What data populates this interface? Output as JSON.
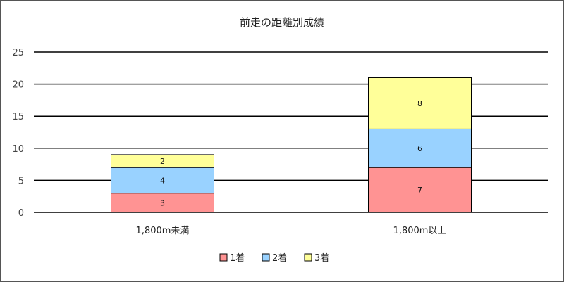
{
  "chart_data": {
    "type": "bar",
    "stacked": true,
    "title": "前走の距離別成績",
    "categories": [
      "1,800m未満",
      "1,800m以上"
    ],
    "series": [
      {
        "name": "1着",
        "values": [
          3,
          7
        ],
        "color": "#ff9393"
      },
      {
        "name": "2着",
        "values": [
          4,
          6
        ],
        "color": "#99d2ff"
      },
      {
        "name": "3着",
        "values": [
          2,
          8
        ],
        "color": "#ffff99"
      }
    ],
    "ylim": [
      0,
      25
    ],
    "yticks": [
      "0",
      "5",
      "10",
      "15",
      "20",
      "25"
    ],
    "grid": true,
    "legend": "bottom"
  }
}
